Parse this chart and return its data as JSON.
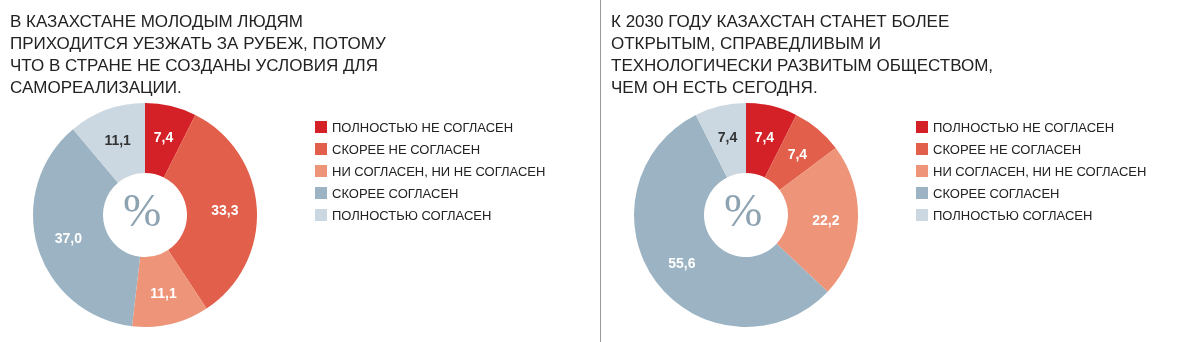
{
  "chart_data": [
    {
      "type": "donut",
      "title": "В КАЗАХСТАНЕ МОЛОДЫМ ЛЮДЯМ ПРИХОДИТСЯ УЕЗЖАТЬ ЗА РУБЕЖ, ПОТОМУ ЧТО В СТРАНЕ НЕ СОЗДАНЫ УСЛОВИЯ ДЛЯ САМОРЕАЛИЗАЦИИ.",
      "categories": [
        "ПОЛНОСТЬЮ НЕ СОГЛАСЕН",
        "СКОРЕЕ НЕ СОГЛАСЕН",
        "НИ СОГЛАСЕН, НИ НЕ СОГЛАСЕН",
        "СКОРЕЕ СОГЛАСЕН",
        "ПОЛНОСТЬЮ СОГЛАСЕН"
      ],
      "values": [
        7.4,
        33.3,
        11.1,
        37.0,
        11.1
      ],
      "value_labels": [
        "7,4",
        "33,3",
        "11,1",
        "37,0",
        "11,1"
      ],
      "colors": [
        "#d42027",
        "#e2604b",
        "#ee9479",
        "#9bb3c2",
        "#cbd8e2"
      ],
      "annotations": [
        "%"
      ],
      "legend": "right"
    },
    {
      "type": "donut",
      "title": "К 2030 ГОДУ КАЗАХСТАН СТАНЕТ БОЛЕЕ ОТКРЫТЫМ, СПРАВЕДЛИВЫМ И ТЕХНОЛОГИЧЕСКИ РАЗВИТЫМ ОБЩЕСТВОМ, ЧЕМ ОН ЕСТЬ СЕГОДНЯ.",
      "categories": [
        "ПОЛНОСТЬЮ НЕ СОГЛАСЕН",
        "СКОРЕЕ НЕ СОГЛАСЕН",
        "НИ СОГЛАСЕН, НИ НЕ СОГЛАСЕН",
        "СКОРЕЕ СОГЛАСЕН",
        "ПОЛНОСТЬЮ СОГЛАСЕН"
      ],
      "values": [
        7.4,
        7.4,
        22.2,
        55.6,
        7.4
      ],
      "value_labels": [
        "7,4",
        "7,4",
        "22,2",
        "55,6",
        "7,4"
      ],
      "colors": [
        "#d42027",
        "#e2604b",
        "#ee9479",
        "#9bb3c2",
        "#cbd8e2"
      ],
      "annotations": [
        "%"
      ],
      "legend": "right"
    }
  ]
}
